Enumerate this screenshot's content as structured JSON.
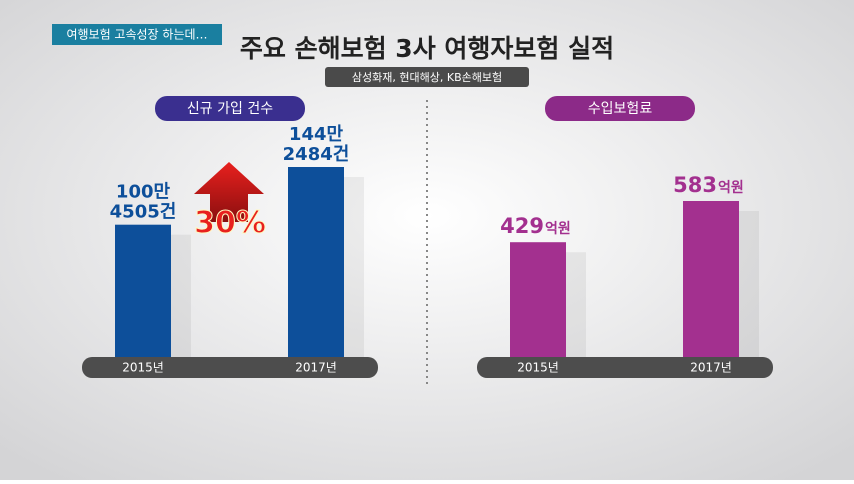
{
  "header": {
    "tag": "여행보험 고속성장 하는데…",
    "title": "주요 손해보험 3사 여행자보험 실적",
    "subtitle": "삼성화재, 현대해상, KB손해보험"
  },
  "chart_data": [
    {
      "type": "bar",
      "title": "신규 가입 건수",
      "categories": [
        "2015년",
        "2017년"
      ],
      "values": [
        1004505,
        1442484
      ],
      "value_labels": [
        [
          "100만",
          "4505건"
        ],
        [
          "144만",
          "2484건"
        ]
      ],
      "color": "#0d4f9a",
      "annotation": "30%"
    },
    {
      "type": "bar",
      "title": "수입보험료",
      "categories": [
        "2015년",
        "2017년"
      ],
      "values": [
        429,
        583
      ],
      "value_labels": [
        [
          "429",
          "억원"
        ],
        [
          "583",
          "억원"
        ]
      ],
      "color": "#a3308f"
    }
  ]
}
